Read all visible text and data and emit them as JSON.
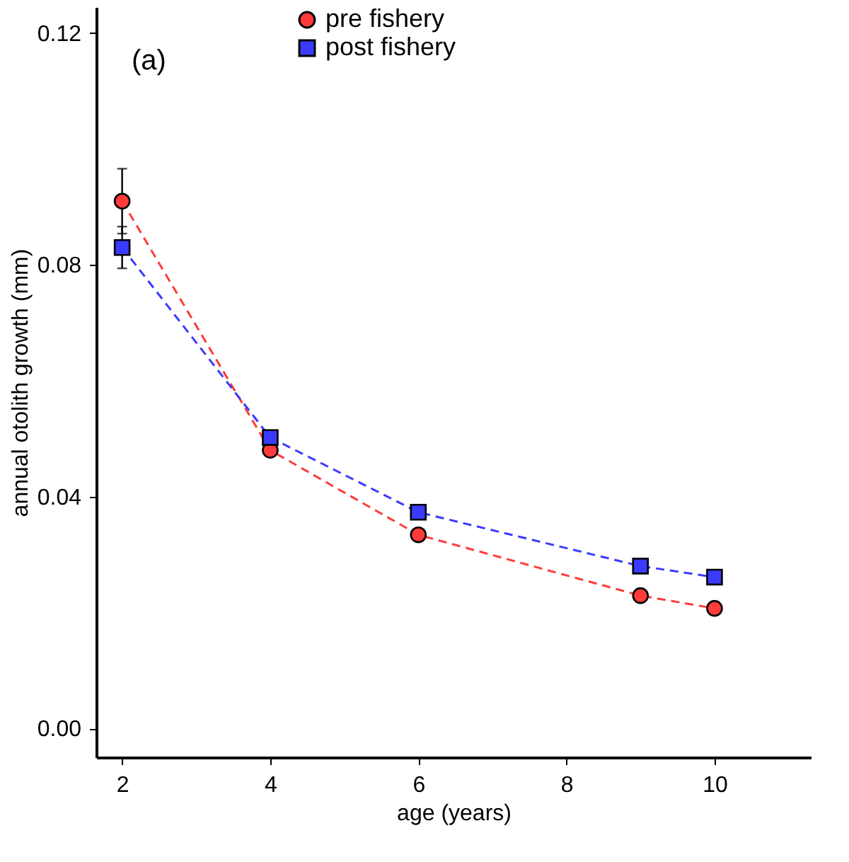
{
  "chart_data": {
    "type": "line",
    "xlabel": "age (years)",
    "ylabel": "annual otolith growth (mm)",
    "annotations": [
      "(a)"
    ],
    "x": [
      2,
      4,
      6,
      9,
      10
    ],
    "series": [
      {
        "name": "pre fishery",
        "color": "#ff3b3b",
        "marker": "circle",
        "line_style": "dashed",
        "values": [
          0.091,
          0.048,
          0.0334,
          0.0229,
          0.0207
        ],
        "errors": [
          0.0056,
          null,
          null,
          null,
          null
        ]
      },
      {
        "name": "post fishery",
        "color": "#3b3bff",
        "marker": "square",
        "line_style": "dashed",
        "values": [
          0.083,
          0.0502,
          0.0373,
          0.028,
          0.0261
        ],
        "errors": [
          0.0036,
          null,
          null,
          null,
          null
        ]
      }
    ],
    "xlim": [
      1.65,
      11.3
    ],
    "ylim": [
      -0.005,
      0.1245
    ],
    "xticks": [
      2,
      4,
      6,
      8,
      10
    ],
    "yticks": [
      {
        "value": 0,
        "label": "0.00"
      },
      0.04,
      0.08,
      0.12
    ],
    "grid": false,
    "legend": "top"
  }
}
